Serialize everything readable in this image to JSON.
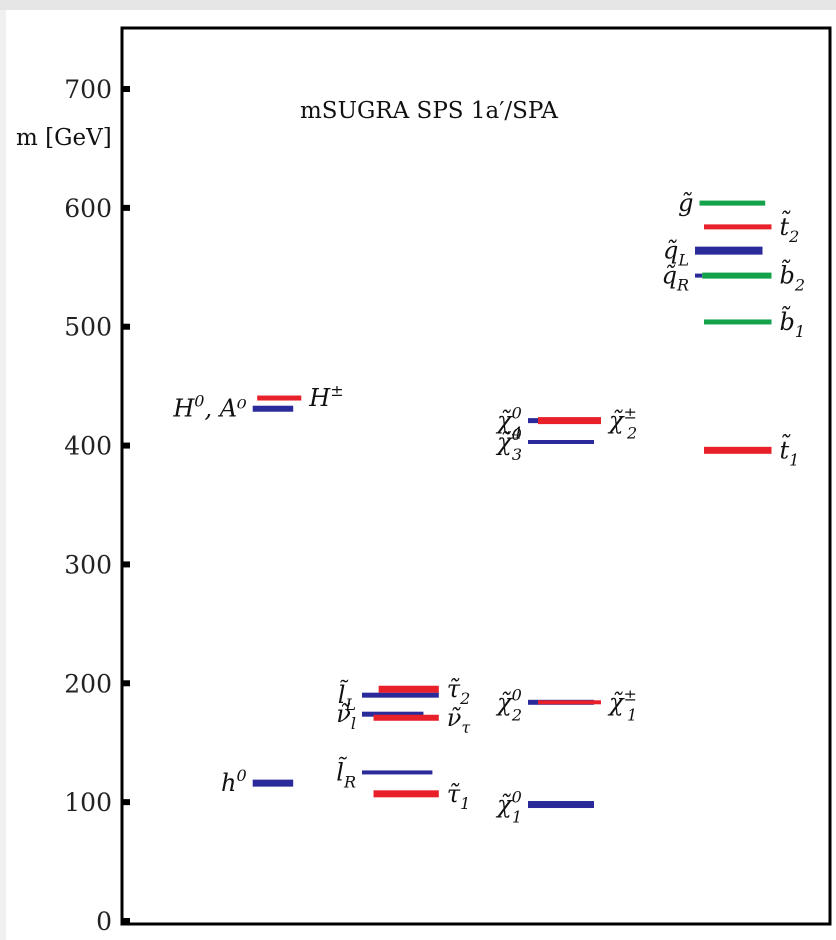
{
  "chart_data": {
    "type": "level-diagram",
    "title": "mSUGRA SPS 1a′/SPA",
    "ylabel": "m [GeV]",
    "ylim": [
      0,
      750
    ],
    "yticks": [
      0,
      100,
      200,
      300,
      400,
      500,
      600,
      700
    ],
    "colors": {
      "blue": "#2b2a9a",
      "red": "#e8202a",
      "green": "#13a14a"
    },
    "levels": [
      {
        "id": "H0A0",
        "column": 1,
        "value": 431,
        "color": "blue",
        "x1": 0.53,
        "x2": 0.98,
        "thick": 6
      },
      {
        "id": "Hpm",
        "column": 1,
        "value": 440,
        "color": "red",
        "x1": 0.58,
        "x2": 1.07,
        "thick": 5
      },
      {
        "id": "h0",
        "column": 1,
        "value": 116,
        "color": "blue",
        "x1": 0.53,
        "x2": 0.98,
        "thick": 7
      },
      {
        "id": "lL",
        "column": 2,
        "value": 190,
        "color": "blue",
        "x1": 0.0,
        "x2": 0.6,
        "thick": 5
      },
      {
        "id": "tau2",
        "column": 2,
        "value": 195,
        "color": "red",
        "x1": 0.13,
        "x2": 0.6,
        "thick": 7
      },
      {
        "id": "nul",
        "column": 2,
        "value": 174,
        "color": "blue",
        "x1": 0.0,
        "x2": 0.48,
        "thick": 5
      },
      {
        "id": "nutau",
        "column": 2,
        "value": 171,
        "color": "red",
        "x1": 0.09,
        "x2": 0.6,
        "thick": 6
      },
      {
        "id": "lR",
        "column": 2,
        "value": 125,
        "color": "blue",
        "x1": 0.0,
        "x2": 0.55,
        "thick": 4
      },
      {
        "id": "tau1",
        "column": 2,
        "value": 107,
        "color": "red",
        "x1": 0.09,
        "x2": 0.6,
        "thick": 7
      },
      {
        "id": "chi40",
        "column": 3,
        "value": 421,
        "color": "blue",
        "x1": 0.0,
        "x2": 0.1,
        "thick": 5
      },
      {
        "id": "chipm2",
        "column": 3,
        "value": 421,
        "color": "red",
        "x1": 0.1,
        "x2": 0.73,
        "thick": 7
      },
      {
        "id": "chi30",
        "column": 3,
        "value": 403,
        "color": "blue",
        "x1": 0.0,
        "x2": 0.66,
        "thick": 4
      },
      {
        "id": "chi20",
        "column": 3,
        "value": 184,
        "color": "blue",
        "x1": 0.0,
        "x2": 0.66,
        "thick": 5
      },
      {
        "id": "chipm1",
        "column": 3,
        "value": 184,
        "color": "red",
        "x1": 0.1,
        "x2": 0.73,
        "thick": 4
      },
      {
        "id": "chi10",
        "column": 3,
        "value": 98,
        "color": "blue",
        "x1": 0.0,
        "x2": 0.66,
        "thick": 7
      },
      {
        "id": "gluino",
        "column": 4,
        "value": 604,
        "color": "green",
        "x1": 0.05,
        "x2": 0.78,
        "thick": 5
      },
      {
        "id": "stop2",
        "column": 4,
        "value": 584,
        "color": "red",
        "x1": 0.1,
        "x2": 0.85,
        "thick": 5
      },
      {
        "id": "sqL",
        "column": 4,
        "value": 564,
        "color": "blue",
        "x1": 0.0,
        "x2": 0.75,
        "thick": 8
      },
      {
        "id": "sqR",
        "column": 4,
        "value": 543,
        "color": "blue",
        "x1": 0.0,
        "x2": 0.08,
        "thick": 4
      },
      {
        "id": "sb2",
        "column": 4,
        "value": 543,
        "color": "green",
        "x1": 0.08,
        "x2": 0.85,
        "thick": 6
      },
      {
        "id": "sb1",
        "column": 4,
        "value": 504,
        "color": "green",
        "x1": 0.1,
        "x2": 0.85,
        "thick": 5
      },
      {
        "id": "stop1",
        "column": 4,
        "value": 396,
        "color": "red",
        "x1": 0.1,
        "x2": 0.85,
        "thick": 7
      }
    ],
    "labels": [
      {
        "id": "H0A0",
        "sym": "H",
        "sup": "0",
        "extra": ", A⁰",
        "side": "left"
      },
      {
        "id": "Hpm",
        "sym": "H",
        "sup": "±",
        "side": "right"
      },
      {
        "id": "h0",
        "sym": "h",
        "sup": "0",
        "side": "left"
      },
      {
        "id": "lL",
        "sym": "l̃",
        "sub": "L",
        "side": "left"
      },
      {
        "id": "tau2",
        "sym": "τ̃",
        "sub": "2",
        "side": "right"
      },
      {
        "id": "nul",
        "sym": "ν̃",
        "sub": "l",
        "side": "left"
      },
      {
        "id": "nutau",
        "sym": "ν̃",
        "sub": "τ",
        "side": "right"
      },
      {
        "id": "lR",
        "sym": "l̃",
        "sub": "R",
        "side": "left"
      },
      {
        "id": "tau1",
        "sym": "τ̃",
        "sub": "1",
        "side": "right"
      },
      {
        "id": "chi40",
        "sym": "χ̃",
        "sup": "0",
        "sub": "4",
        "side": "left"
      },
      {
        "id": "chipm2",
        "sym": "χ̃",
        "sup": "±",
        "sub": "2",
        "side": "right"
      },
      {
        "id": "chi30",
        "sym": "χ̃",
        "sup": "0",
        "sub": "3",
        "side": "left"
      },
      {
        "id": "chi20",
        "sym": "χ̃",
        "sup": "0",
        "sub": "2",
        "side": "left"
      },
      {
        "id": "chipm1",
        "sym": "χ̃",
        "sup": "±",
        "sub": "1",
        "side": "right"
      },
      {
        "id": "chi10",
        "sym": "χ̃",
        "sup": "0",
        "sub": "1",
        "side": "left"
      },
      {
        "id": "gluino",
        "sym": "g̃",
        "side": "left"
      },
      {
        "id": "stop2",
        "sym": "t̃",
        "sub": "2",
        "side": "right"
      },
      {
        "id": "sqL",
        "sym": "q̃",
        "sub": "L",
        "side": "left"
      },
      {
        "id": "sqR",
        "sym": "q̃",
        "sub": "R",
        "side": "left"
      },
      {
        "id": "sb2",
        "sym": "b̃",
        "sub": "2",
        "side": "right"
      },
      {
        "id": "sb1",
        "sym": "b̃",
        "sub": "1",
        "side": "right"
      },
      {
        "id": "stop1",
        "sym": "t̃",
        "sub": "1",
        "side": "right"
      }
    ]
  }
}
